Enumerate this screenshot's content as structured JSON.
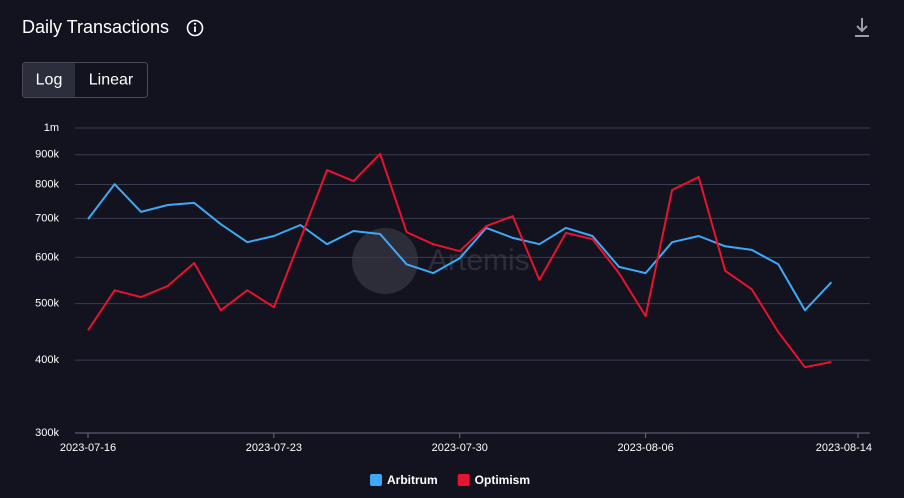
{
  "chart_data": {
    "type": "line",
    "title": "Daily Transactions",
    "scale_options": [
      "Log",
      "Linear"
    ],
    "watermark": "Artemis",
    "log": true,
    "grid": true,
    "legend": "bottom",
    "x": [
      "2023-07-16",
      "2023-07-17",
      "2023-07-18",
      "2023-07-19",
      "2023-07-20",
      "2023-07-21",
      "2023-07-22",
      "2023-07-23",
      "2023-07-24",
      "2023-07-25",
      "2023-07-26",
      "2023-07-27",
      "2023-07-28",
      "2023-07-29",
      "2023-07-30",
      "2023-07-31",
      "2023-08-01",
      "2023-08-02",
      "2023-08-03",
      "2023-08-04",
      "2023-08-05",
      "2023-08-06",
      "2023-08-07",
      "2023-08-08",
      "2023-08-09",
      "2023-08-10",
      "2023-08-11",
      "2023-08-12",
      "2023-08-13"
    ],
    "xlim": [
      "2023-07-16",
      "2023-08-14"
    ],
    "xticks": [
      "2023-07-16",
      "2023-07-23",
      "2023-07-30",
      "2023-08-06",
      "2023-08-14"
    ],
    "ylim": [
      300000,
      1000000
    ],
    "yticks": [
      {
        "value": 300000,
        "label": "300k"
      },
      {
        "value": 400000,
        "label": "400k"
      },
      {
        "value": 500000,
        "label": "500k"
      },
      {
        "value": 600000,
        "label": "600k"
      },
      {
        "value": 700000,
        "label": "700k"
      },
      {
        "value": 800000,
        "label": "800k"
      },
      {
        "value": 900000,
        "label": "900k"
      },
      {
        "value": 1000000,
        "label": "1m"
      }
    ],
    "series": [
      {
        "name": "Arbitrum",
        "color": "#3fa9f5",
        "values": [
          698000,
          801000,
          718000,
          738000,
          744000,
          684000,
          637000,
          653000,
          682000,
          632000,
          666000,
          658000,
          584000,
          564000,
          598000,
          674000,
          648000,
          632000,
          674000,
          653000,
          578000,
          564000,
          637000,
          653000,
          627000,
          618000,
          584000,
          487000,
          544000
        ]
      },
      {
        "name": "Optimism",
        "color": "#e8132c",
        "values": [
          450000,
          527000,
          513000,
          536000,
          587000,
          487000,
          527000,
          493000,
          645000,
          847000,
          811000,
          903000,
          663000,
          632000,
          615000,
          679000,
          706000,
          549000,
          661000,
          645000,
          564000,
          476000,
          783000,
          824000,
          569000,
          529000,
          447000,
          389000,
          397000
        ]
      }
    ]
  }
}
